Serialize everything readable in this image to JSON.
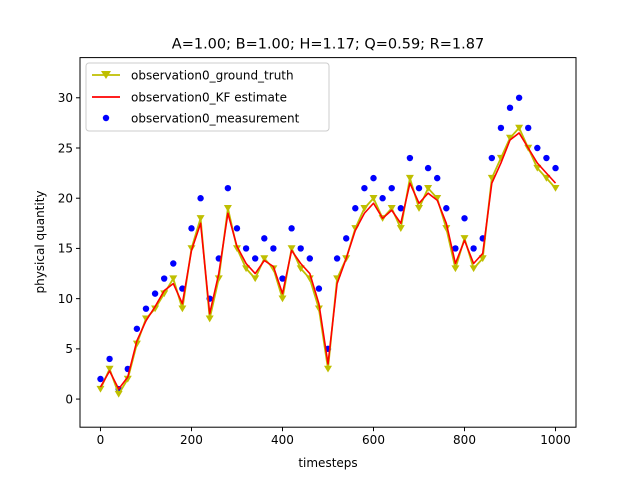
{
  "chart_data": {
    "type": "line",
    "title": "A=1.00; B=1.00; H=1.17; Q=0.59; R=1.87",
    "xlabel": "timesteps",
    "ylabel": "physical quantity",
    "xlim": [
      -45,
      1045
    ],
    "ylim": [
      -2.8,
      34.0
    ],
    "xticks": [
      0,
      200,
      400,
      600,
      800,
      1000
    ],
    "yticks": [
      0,
      5,
      10,
      15,
      20,
      25,
      30
    ],
    "legend_position": "upper-left",
    "grid": false,
    "series": [
      {
        "name": "observation0_ground_truth",
        "kind": "line-triangle-markers",
        "color": "#bfbf00"
      },
      {
        "name": "observation0_KF estimate",
        "kind": "line",
        "color": "#ff0000"
      },
      {
        "name": "observation0_measurement",
        "kind": "scatter",
        "color": "#0000ff"
      }
    ],
    "x": [
      0,
      20,
      40,
      60,
      80,
      100,
      120,
      140,
      160,
      180,
      200,
      220,
      240,
      260,
      280,
      300,
      320,
      340,
      360,
      380,
      400,
      420,
      440,
      460,
      480,
      500,
      520,
      540,
      560,
      580,
      600,
      620,
      640,
      660,
      680,
      700,
      720,
      740,
      760,
      780,
      800,
      820,
      840,
      860,
      880,
      900,
      920,
      940,
      960,
      980,
      1000
    ],
    "ground_truth": [
      1,
      3,
      0.5,
      2,
      5.5,
      8,
      9,
      10.5,
      12,
      9,
      15,
      18,
      8,
      12,
      19,
      15,
      13,
      12,
      14,
      13,
      10,
      15,
      13,
      12,
      9,
      3,
      12,
      14,
      17,
      19,
      20,
      18,
      19,
      17,
      22,
      19,
      21,
      20,
      17,
      13,
      16,
      13,
      14,
      22,
      24,
      26,
      27,
      25,
      23,
      22,
      21
    ],
    "kf_estimate": [
      1.2,
      2.8,
      1,
      2.2,
      5.8,
      7.8,
      9.2,
      10.8,
      11.5,
      9.5,
      14.8,
      17.5,
      8.5,
      12.5,
      18.5,
      15.2,
      13.5,
      12.5,
      13.8,
      13.2,
      10.5,
      14.8,
      13.5,
      12.5,
      9.5,
      3.5,
      11.5,
      14,
      16.8,
      18.5,
      19.5,
      18,
      18.8,
      17.5,
      21.5,
      19.5,
      20.5,
      19.8,
      17.5,
      13.5,
      15.8,
      13.5,
      14.5,
      21.5,
      23.5,
      25.8,
      26.5,
      25,
      23.5,
      22.5,
      21.5
    ],
    "measurement": [
      2,
      4,
      1,
      3,
      7,
      9,
      10.5,
      12,
      13.5,
      11,
      17,
      20,
      10,
      14,
      21,
      17,
      15,
      14,
      16,
      15,
      12,
      17,
      15,
      14,
      11,
      5,
      14,
      16,
      19,
      21,
      22,
      20,
      21,
      19,
      24,
      21,
      23,
      22,
      19,
      15,
      18,
      15,
      16,
      24,
      27,
      29,
      30,
      27,
      25,
      24,
      23
    ]
  }
}
